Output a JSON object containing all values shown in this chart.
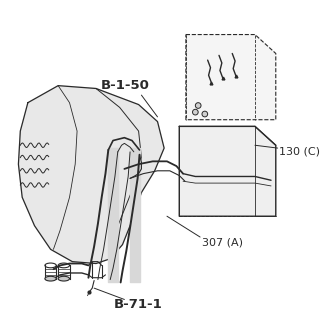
{
  "background_color": "#ffffff",
  "line_color": "#2a2a2a",
  "label_b150": "B-1-50",
  "label_b711": "B-71-1",
  "label_130c": "130 (C)",
  "label_307a": "307 (A)",
  "fig_width": 3.26,
  "fig_height": 3.2,
  "dpi": 100
}
